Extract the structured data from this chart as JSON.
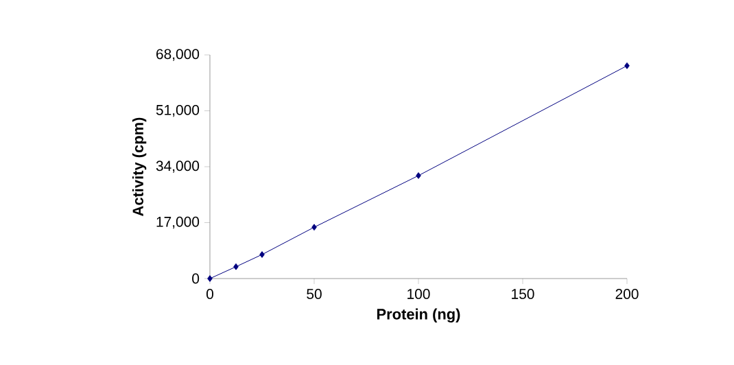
{
  "chart_data": {
    "type": "line",
    "xlabel": "Protein (ng)",
    "ylabel": "Activity (cpm)",
    "x": [
      0,
      12.5,
      25,
      50,
      100,
      200
    ],
    "series": [
      {
        "color": "#000080",
        "values": [
          0,
          3600,
          7300,
          15600,
          31300,
          64700
        ]
      }
    ],
    "xlim": [
      0,
      200
    ],
    "xticks": [
      0,
      50,
      100,
      150,
      200
    ],
    "ylim": [
      0,
      68000
    ],
    "yticks": [
      {
        "value": 0,
        "label": "0"
      },
      {
        "value": 17000,
        "label": "17,000"
      },
      {
        "value": 34000,
        "label": "34,000"
      },
      {
        "value": 51000,
        "label": "51,000"
      },
      {
        "value": 68000,
        "label": "68,000"
      }
    ],
    "marker": "diamond",
    "line_style": "solid",
    "grid": false
  }
}
